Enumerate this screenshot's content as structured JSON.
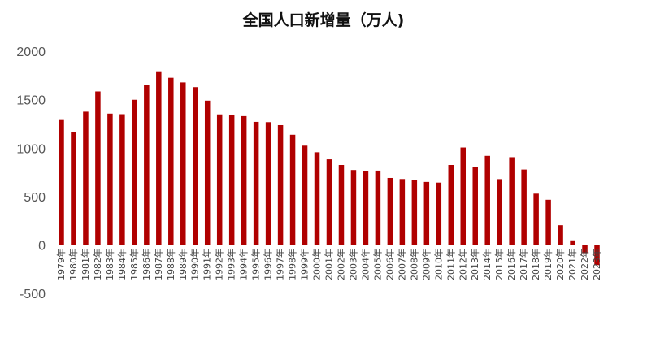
{
  "chart_data": {
    "type": "bar",
    "title": "全国人口新增量（万人)",
    "xlabel": "",
    "ylabel": "",
    "ylim": [
      -500,
      2000
    ],
    "yticks": [
      2000,
      1500,
      1000,
      500,
      0,
      -500
    ],
    "grid": false,
    "legend": "none",
    "bar_color": "#b00000",
    "categories": [
      "1979年",
      "1980年",
      "1981年",
      "1982年",
      "1983年",
      "1984年",
      "1985年",
      "1986年",
      "1987年",
      "1988年",
      "1989年",
      "1990年",
      "1991年",
      "1992年",
      "1993年",
      "1994年",
      "1995年",
      "1996年",
      "1997年",
      "1998年",
      "1999年",
      "2000年",
      "2001年",
      "2002年",
      "2003年",
      "2004年",
      "2005年",
      "2006年",
      "2007年",
      "2008年",
      "2009年",
      "2010年",
      "2011年",
      "2012年",
      "2013年",
      "2014年",
      "2015年",
      "2016年",
      "2017年",
      "2018年",
      "2019年",
      "2020年",
      "2021年",
      "2022年",
      "2023年"
    ],
    "values": [
      1290,
      1163,
      1376,
      1585,
      1356,
      1350,
      1499,
      1656,
      1793,
      1726,
      1678,
      1629,
      1490,
      1348,
      1346,
      1330,
      1271,
      1268,
      1237,
      1138,
      1025,
      957,
      884,
      826,
      774,
      761,
      768,
      692,
      681,
      673,
      651,
      644,
      826,
      1006,
      804,
      920,
      680,
      906,
      779,
      530,
      467,
      204,
      48,
      -85,
      -208
    ]
  }
}
